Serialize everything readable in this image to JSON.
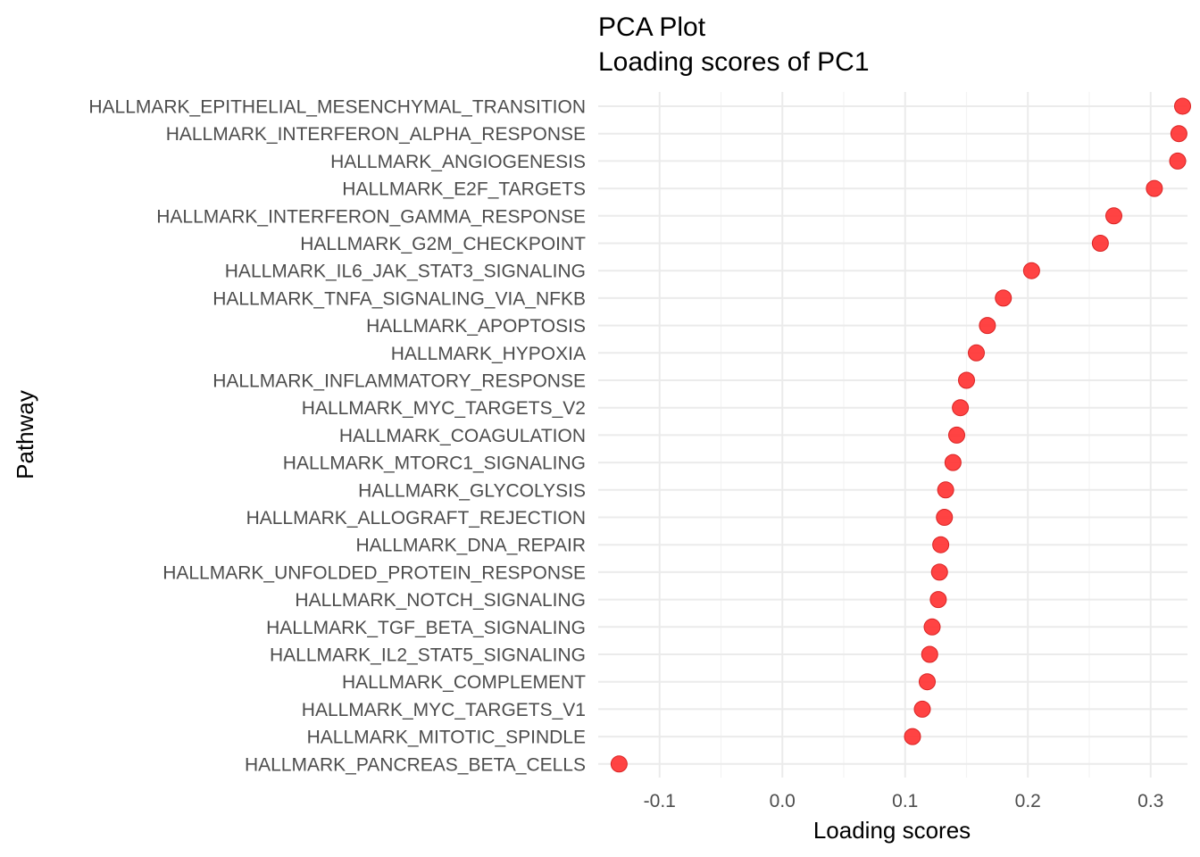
{
  "chart_data": {
    "type": "scatter",
    "title": "PCA Plot",
    "subtitle": "Loading scores of PC1",
    "xlabel": "Loading scores",
    "ylabel": "Pathway",
    "xlim": [
      -0.15,
      0.33
    ],
    "x_ticks": [
      -0.1,
      0.0,
      0.1,
      0.2,
      0.3
    ],
    "x_tick_labels": [
      "-0.1",
      "0.0",
      "0.1",
      "0.2",
      "0.3"
    ],
    "grid": true,
    "legend": "none",
    "point_color": "#ff3333",
    "point_edge_color": "#d92424",
    "categories": [
      "HALLMARK_EPITHELIAL_MESENCHYMAL_TRANSITION",
      "HALLMARK_INTERFERON_ALPHA_RESPONSE",
      "HALLMARK_ANGIOGENESIS",
      "HALLMARK_E2F_TARGETS",
      "HALLMARK_INTERFERON_GAMMA_RESPONSE",
      "HALLMARK_G2M_CHECKPOINT",
      "HALLMARK_IL6_JAK_STAT3_SIGNALING",
      "HALLMARK_TNFA_SIGNALING_VIA_NFKB",
      "HALLMARK_APOPTOSIS",
      "HALLMARK_HYPOXIA",
      "HALLMARK_INFLAMMATORY_RESPONSE",
      "HALLMARK_MYC_TARGETS_V2",
      "HALLMARK_COAGULATION",
      "HALLMARK_MTORC1_SIGNALING",
      "HALLMARK_GLYCOLYSIS",
      "HALLMARK_ALLOGRAFT_REJECTION",
      "HALLMARK_DNA_REPAIR",
      "HALLMARK_UNFOLDED_PROTEIN_RESPONSE",
      "HALLMARK_NOTCH_SIGNALING",
      "HALLMARK_TGF_BETA_SIGNALING",
      "HALLMARK_IL2_STAT5_SIGNALING",
      "HALLMARK_COMPLEMENT",
      "HALLMARK_MYC_TARGETS_V1",
      "HALLMARK_MITOTIC_SPINDLE",
      "HALLMARK_PANCREAS_BETA_CELLS"
    ],
    "values": [
      0.326,
      0.323,
      0.322,
      0.303,
      0.27,
      0.259,
      0.203,
      0.18,
      0.167,
      0.158,
      0.15,
      0.145,
      0.142,
      0.139,
      0.133,
      0.132,
      0.129,
      0.128,
      0.127,
      0.122,
      0.12,
      0.118,
      0.114,
      0.106,
      -0.133
    ]
  }
}
